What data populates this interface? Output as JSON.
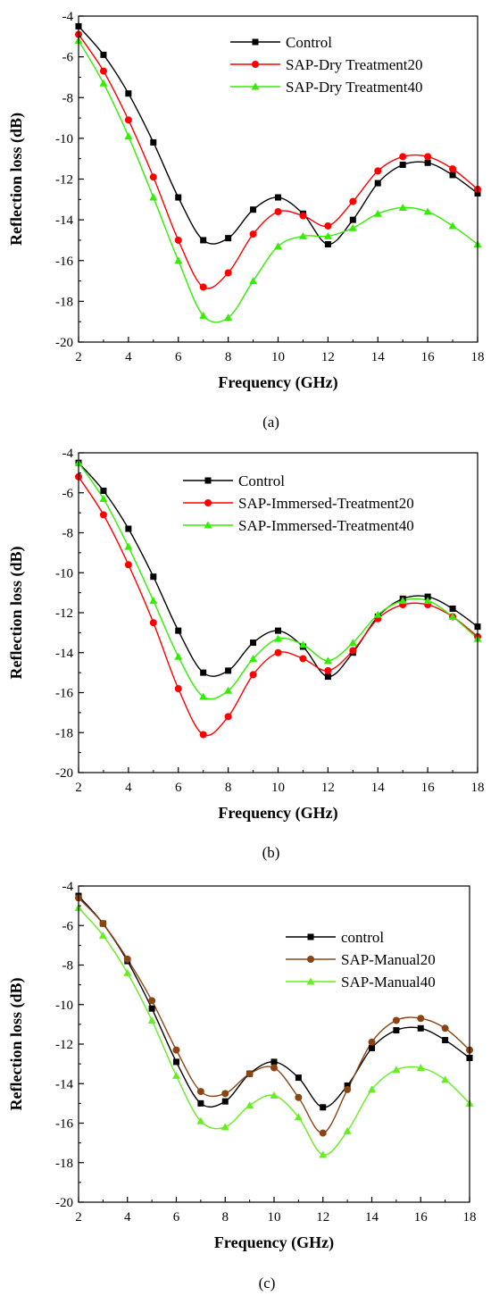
{
  "panels": [
    {
      "caption": "(a)",
      "chart_data": {
        "type": "line",
        "xlabel": "Frequency (GHz)",
        "ylabel": "Reflection loss (dB)",
        "xlim": [
          2,
          18
        ],
        "ylim": [
          -20,
          -4
        ],
        "xticks": [
          2,
          4,
          6,
          8,
          10,
          12,
          14,
          16,
          18
        ],
        "yticks": [
          -20,
          -18,
          -16,
          -14,
          -12,
          -10,
          -8,
          -6,
          -4
        ],
        "grid": false,
        "legend_position": "top-right",
        "x": [
          2,
          3,
          4,
          5,
          6,
          7,
          8,
          9,
          10,
          11,
          12,
          13,
          14,
          15,
          16,
          17,
          18
        ],
        "series": [
          {
            "name": "Control",
            "color": "#000000",
            "marker": "square",
            "values": [
              -4.5,
              -5.9,
              -7.8,
              -10.2,
              -12.9,
              -15.0,
              -14.9,
              -13.5,
              -12.9,
              -13.7,
              -15.2,
              -14.0,
              -12.2,
              -11.3,
              -11.2,
              -11.8,
              -12.7
            ]
          },
          {
            "name": "SAP-Dry Treatment20",
            "color": "#ff0000",
            "marker": "circle",
            "values": [
              -4.9,
              -6.7,
              -9.1,
              -11.9,
              -15.0,
              -17.3,
              -16.6,
              -14.7,
              -13.6,
              -13.8,
              -14.3,
              -13.1,
              -11.6,
              -10.9,
              -10.9,
              -11.5,
              -12.5
            ]
          },
          {
            "name": "SAP-Dry Treatment40",
            "color": "#33ee00",
            "marker": "triangle",
            "values": [
              -5.2,
              -7.3,
              -9.9,
              -12.9,
              -16.0,
              -18.7,
              -18.8,
              -17.0,
              -15.3,
              -14.8,
              -14.8,
              -14.4,
              -13.7,
              -13.4,
              -13.6,
              -14.3,
              -15.2
            ]
          }
        ]
      }
    },
    {
      "caption": "(b)",
      "chart_data": {
        "type": "line",
        "xlabel": "Frequency (GHz)",
        "ylabel": "Reflection loss (dB)",
        "xlim": [
          2,
          18
        ],
        "ylim": [
          -20,
          -4
        ],
        "xticks": [
          2,
          4,
          6,
          8,
          10,
          12,
          14,
          16,
          18
        ],
        "yticks": [
          -20,
          -18,
          -16,
          -14,
          -12,
          -10,
          -8,
          -6,
          -4
        ],
        "grid": false,
        "legend_position": "top-right",
        "x": [
          2,
          3,
          4,
          5,
          6,
          7,
          8,
          9,
          10,
          11,
          12,
          13,
          14,
          15,
          16,
          17,
          18
        ],
        "series": [
          {
            "name": "Control",
            "color": "#000000",
            "marker": "square",
            "values": [
              -4.5,
              -5.9,
              -7.8,
              -10.2,
              -12.9,
              -15.0,
              -14.9,
              -13.5,
              -12.9,
              -13.7,
              -15.2,
              -14.0,
              -12.2,
              -11.3,
              -11.2,
              -11.8,
              -12.7
            ]
          },
          {
            "name": "SAP-Immersed-Treatment20",
            "color": "#ff0000",
            "marker": "circle",
            "values": [
              -5.2,
              -7.1,
              -9.6,
              -12.5,
              -15.8,
              -18.1,
              -17.2,
              -15.1,
              -14.0,
              -14.3,
              -14.9,
              -13.9,
              -12.3,
              -11.6,
              -11.6,
              -12.2,
              -13.2
            ]
          },
          {
            "name": "SAP-Immersed-Treatment40",
            "color": "#33ee00",
            "marker": "triangle",
            "values": [
              -4.5,
              -6.3,
              -8.7,
              -11.4,
              -14.2,
              -16.2,
              -15.9,
              -14.3,
              -13.3,
              -13.6,
              -14.4,
              -13.5,
              -12.1,
              -11.4,
              -11.4,
              -12.2,
              -13.3
            ]
          }
        ]
      }
    },
    {
      "caption": "(c)",
      "chart_data": {
        "type": "line",
        "xlabel": "Frequency (GHz)",
        "ylabel": "Reflection loss (dB)",
        "xlim": [
          2,
          18
        ],
        "ylim": [
          -20,
          -4
        ],
        "xticks": [
          2,
          4,
          6,
          8,
          10,
          12,
          14,
          16,
          18
        ],
        "yticks": [
          -20,
          -18,
          -16,
          -14,
          -12,
          -10,
          -8,
          -6,
          -4
        ],
        "grid": false,
        "legend_position": "top-right",
        "x": [
          2,
          3,
          4,
          5,
          6,
          7,
          8,
          9,
          10,
          11,
          12,
          13,
          14,
          15,
          16,
          17,
          18
        ],
        "series": [
          {
            "name": "control",
            "color": "#000000",
            "marker": "square",
            "values": [
              -4.5,
              -5.9,
              -7.8,
              -10.2,
              -12.9,
              -15.0,
              -14.9,
              -13.5,
              -12.9,
              -13.7,
              -15.2,
              -14.1,
              -12.2,
              -11.3,
              -11.2,
              -11.8,
              -12.7
            ]
          },
          {
            "name": "SAP-Manual20",
            "color": "#8b4513",
            "marker": "circle",
            "values": [
              -4.6,
              -5.9,
              -7.7,
              -9.8,
              -12.3,
              -14.4,
              -14.5,
              -13.5,
              -13.2,
              -14.7,
              -16.5,
              -14.3,
              -11.9,
              -10.8,
              -10.7,
              -11.2,
              -12.3
            ]
          },
          {
            "name": "SAP-Manual40",
            "color": "#66ee22",
            "marker": "triangle",
            "values": [
              -5.1,
              -6.5,
              -8.4,
              -10.8,
              -13.6,
              -15.9,
              -16.2,
              -15.1,
              -14.6,
              -15.7,
              -17.6,
              -16.4,
              -14.3,
              -13.3,
              -13.2,
              -13.8,
              -15.0
            ]
          }
        ]
      }
    }
  ]
}
